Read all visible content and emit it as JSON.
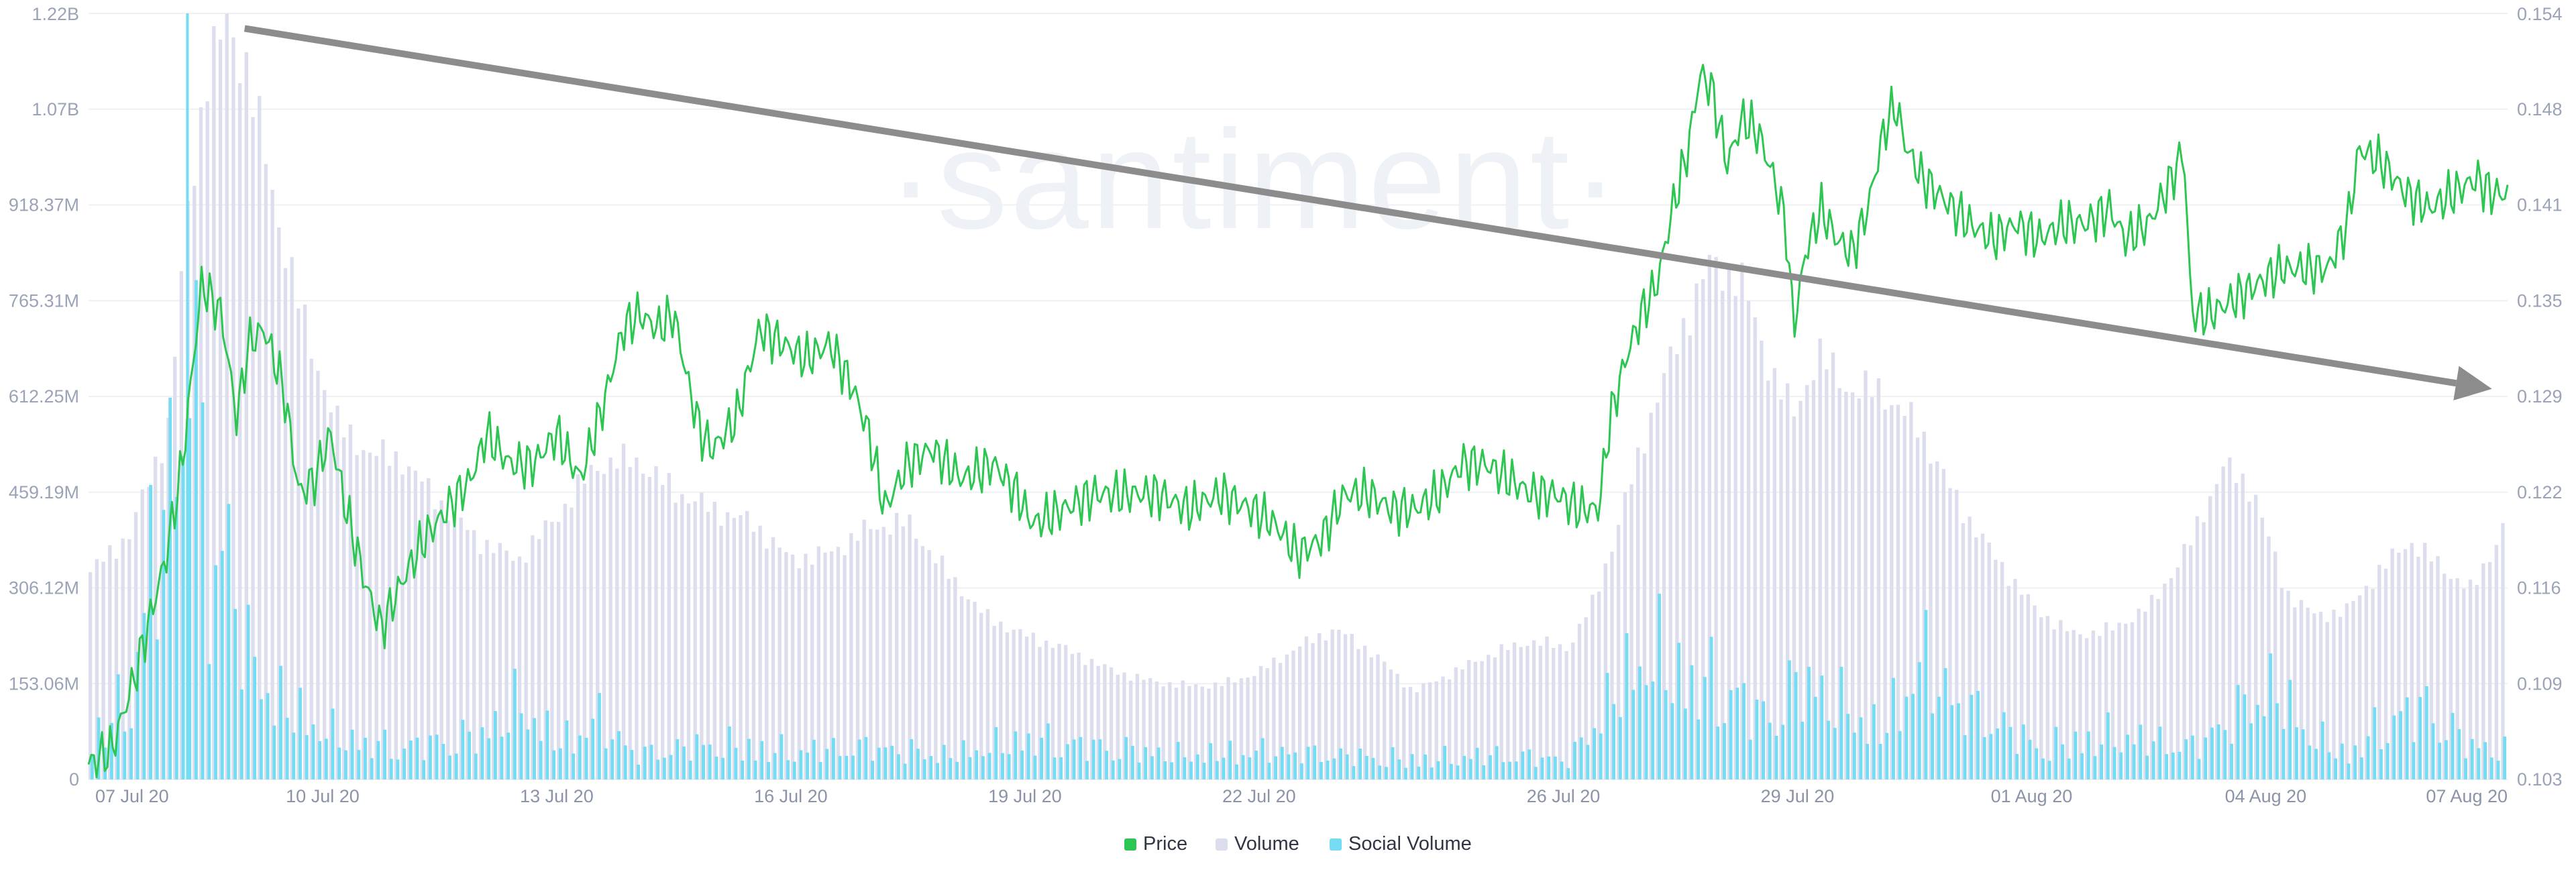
{
  "watermark": "·santiment·",
  "colors": {
    "price": "#2dc653",
    "volume": "#dcdded",
    "social_volume": "#74dcf3",
    "grid": "#eef0f4",
    "axis_text": "#9aa3b8",
    "trend_arrow": "#8c8c8c"
  },
  "chart_data": {
    "type": "line",
    "x_start": "07 Jul 20",
    "x_end": "07 Aug 20",
    "x_tick_labels": [
      "07 Jul 20",
      "10 Jul 20",
      "13 Jul 20",
      "16 Jul 20",
      "19 Jul 20",
      "22 Jul 20",
      "26 Jul 20",
      "29 Jul 20",
      "01 Aug 20",
      "04 Aug 20",
      "07 Aug 20"
    ],
    "left_axis": {
      "tick_labels": [
        "0",
        "153.06M",
        "306.12M",
        "459.19M",
        "612.25M",
        "765.31M",
        "918.37M",
        "1.07B",
        "1.22B"
      ],
      "range": [
        0,
        1220000000
      ]
    },
    "right_axis": {
      "tick_labels": [
        "0.103",
        "0.109",
        "0.116",
        "0.122",
        "0.129",
        "0.135",
        "0.141",
        "0.148",
        "0.154"
      ],
      "range": [
        0.103,
        0.154
      ]
    },
    "grid": true,
    "legend_position": "bottom-center",
    "series": [
      {
        "name": "Price",
        "axis": "right",
        "style": "line",
        "values": [
          {
            "d": 0.0,
            "v": 0.104
          },
          {
            "d": 0.3,
            "v": 0.105
          },
          {
            "d": 0.6,
            "v": 0.11
          },
          {
            "d": 0.8,
            "v": 0.114
          },
          {
            "d": 1.0,
            "v": 0.118
          },
          {
            "d": 1.2,
            "v": 0.124
          },
          {
            "d": 1.45,
            "v": 0.136
          },
          {
            "d": 1.7,
            "v": 0.134
          },
          {
            "d": 1.9,
            "v": 0.127
          },
          {
            "d": 2.05,
            "v": 0.132
          },
          {
            "d": 2.25,
            "v": 0.133
          },
          {
            "d": 2.5,
            "v": 0.129
          },
          {
            "d": 2.7,
            "v": 0.122
          },
          {
            "d": 2.9,
            "v": 0.123
          },
          {
            "d": 3.1,
            "v": 0.126
          },
          {
            "d": 3.3,
            "v": 0.121
          },
          {
            "d": 3.55,
            "v": 0.116
          },
          {
            "d": 3.75,
            "v": 0.113
          },
          {
            "d": 4.0,
            "v": 0.116
          },
          {
            "d": 4.3,
            "v": 0.119
          },
          {
            "d": 4.6,
            "v": 0.121
          },
          {
            "d": 4.9,
            "v": 0.123
          },
          {
            "d": 5.1,
            "v": 0.126
          },
          {
            "d": 5.4,
            "v": 0.124
          },
          {
            "d": 5.7,
            "v": 0.124
          },
          {
            "d": 6.0,
            "v": 0.126
          },
          {
            "d": 6.3,
            "v": 0.123
          },
          {
            "d": 6.6,
            "v": 0.128
          },
          {
            "d": 6.85,
            "v": 0.133
          },
          {
            "d": 7.05,
            "v": 0.134
          },
          {
            "d": 7.3,
            "v": 0.133
          },
          {
            "d": 7.5,
            "v": 0.134
          },
          {
            "d": 7.7,
            "v": 0.129
          },
          {
            "d": 7.85,
            "v": 0.126
          },
          {
            "d": 8.0,
            "v": 0.125
          },
          {
            "d": 8.3,
            "v": 0.127
          },
          {
            "d": 8.6,
            "v": 0.133
          },
          {
            "d": 8.9,
            "v": 0.132
          },
          {
            "d": 9.2,
            "v": 0.131
          },
          {
            "d": 9.5,
            "v": 0.132
          },
          {
            "d": 9.8,
            "v": 0.129
          },
          {
            "d": 10.0,
            "v": 0.126
          },
          {
            "d": 10.2,
            "v": 0.121
          },
          {
            "d": 10.5,
            "v": 0.124
          },
          {
            "d": 10.8,
            "v": 0.125
          },
          {
            "d": 11.2,
            "v": 0.123
          },
          {
            "d": 11.6,
            "v": 0.124
          },
          {
            "d": 11.9,
            "v": 0.122
          },
          {
            "d": 12.1,
            "v": 0.12
          },
          {
            "d": 12.5,
            "v": 0.121
          },
          {
            "d": 12.9,
            "v": 0.122
          },
          {
            "d": 13.3,
            "v": 0.122
          },
          {
            "d": 13.7,
            "v": 0.122
          },
          {
            "d": 14.1,
            "v": 0.121
          },
          {
            "d": 14.5,
            "v": 0.122
          },
          {
            "d": 14.9,
            "v": 0.121
          },
          {
            "d": 15.2,
            "v": 0.12
          },
          {
            "d": 15.5,
            "v": 0.118
          },
          {
            "d": 15.8,
            "v": 0.119
          },
          {
            "d": 16.1,
            "v": 0.122
          },
          {
            "d": 16.4,
            "v": 0.122
          },
          {
            "d": 16.7,
            "v": 0.121
          },
          {
            "d": 17.0,
            "v": 0.121
          },
          {
            "d": 17.3,
            "v": 0.122
          },
          {
            "d": 17.6,
            "v": 0.124
          },
          {
            "d": 17.9,
            "v": 0.124
          },
          {
            "d": 18.2,
            "v": 0.123
          },
          {
            "d": 18.5,
            "v": 0.122
          },
          {
            "d": 18.8,
            "v": 0.122
          },
          {
            "d": 19.1,
            "v": 0.121
          },
          {
            "d": 19.35,
            "v": 0.121
          },
          {
            "d": 19.5,
            "v": 0.127
          },
          {
            "d": 19.7,
            "v": 0.131
          },
          {
            "d": 19.9,
            "v": 0.134
          },
          {
            "d": 20.1,
            "v": 0.136
          },
          {
            "d": 20.3,
            "v": 0.141
          },
          {
            "d": 20.5,
            "v": 0.145
          },
          {
            "d": 20.65,
            "v": 0.15
          },
          {
            "d": 20.8,
            "v": 0.149
          },
          {
            "d": 21.0,
            "v": 0.144
          },
          {
            "d": 21.2,
            "v": 0.147
          },
          {
            "d": 21.4,
            "v": 0.146
          },
          {
            "d": 21.6,
            "v": 0.143
          },
          {
            "d": 21.75,
            "v": 0.14
          },
          {
            "d": 21.85,
            "v": 0.133
          },
          {
            "d": 22.0,
            "v": 0.138
          },
          {
            "d": 22.2,
            "v": 0.141
          },
          {
            "d": 22.4,
            "v": 0.139
          },
          {
            "d": 22.6,
            "v": 0.138
          },
          {
            "d": 22.8,
            "v": 0.141
          },
          {
            "d": 23.0,
            "v": 0.146
          },
          {
            "d": 23.15,
            "v": 0.148
          },
          {
            "d": 23.3,
            "v": 0.145
          },
          {
            "d": 23.5,
            "v": 0.143
          },
          {
            "d": 23.7,
            "v": 0.142
          },
          {
            "d": 23.9,
            "v": 0.141
          },
          {
            "d": 24.1,
            "v": 0.14
          },
          {
            "d": 24.4,
            "v": 0.139
          },
          {
            "d": 24.7,
            "v": 0.14
          },
          {
            "d": 25.0,
            "v": 0.139
          },
          {
            "d": 25.3,
            "v": 0.14
          },
          {
            "d": 25.6,
            "v": 0.14
          },
          {
            "d": 25.9,
            "v": 0.141
          },
          {
            "d": 26.1,
            "v": 0.139
          },
          {
            "d": 26.4,
            "v": 0.14
          },
          {
            "d": 26.7,
            "v": 0.143
          },
          {
            "d": 26.85,
            "v": 0.145
          },
          {
            "d": 26.95,
            "v": 0.134
          },
          {
            "d": 27.2,
            "v": 0.134
          },
          {
            "d": 27.5,
            "v": 0.135
          },
          {
            "d": 27.8,
            "v": 0.136
          },
          {
            "d": 28.1,
            "v": 0.137
          },
          {
            "d": 28.4,
            "v": 0.137
          },
          {
            "d": 28.7,
            "v": 0.137
          },
          {
            "d": 28.95,
            "v": 0.14
          },
          {
            "d": 29.1,
            "v": 0.145
          },
          {
            "d": 29.4,
            "v": 0.144
          },
          {
            "d": 29.7,
            "v": 0.142
          },
          {
            "d": 30.0,
            "v": 0.141
          },
          {
            "d": 30.3,
            "v": 0.142
          },
          {
            "d": 30.6,
            "v": 0.143
          },
          {
            "d": 30.8,
            "v": 0.142
          },
          {
            "d": 31.0,
            "v": 0.142
          }
        ]
      },
      {
        "name": "Volume",
        "axis": "left",
        "style": "bar",
        "values": [
          {
            "d": 0.0,
            "v": 330000000
          },
          {
            "d": 0.5,
            "v": 390000000
          },
          {
            "d": 1.0,
            "v": 560000000
          },
          {
            "d": 1.25,
            "v": 900000000
          },
          {
            "d": 1.5,
            "v": 1130000000
          },
          {
            "d": 1.75,
            "v": 1200000000
          },
          {
            "d": 2.0,
            "v": 1140000000
          },
          {
            "d": 2.4,
            "v": 900000000
          },
          {
            "d": 2.8,
            "v": 700000000
          },
          {
            "d": 3.2,
            "v": 560000000
          },
          {
            "d": 3.6,
            "v": 520000000
          },
          {
            "d": 4.0,
            "v": 510000000
          },
          {
            "d": 4.5,
            "v": 440000000
          },
          {
            "d": 5.0,
            "v": 380000000
          },
          {
            "d": 5.5,
            "v": 350000000
          },
          {
            "d": 6.0,
            "v": 420000000
          },
          {
            "d": 6.5,
            "v": 500000000
          },
          {
            "d": 7.0,
            "v": 510000000
          },
          {
            "d": 7.5,
            "v": 460000000
          },
          {
            "d": 8.0,
            "v": 430000000
          },
          {
            "d": 8.5,
            "v": 410000000
          },
          {
            "d": 9.0,
            "v": 350000000
          },
          {
            "d": 9.5,
            "v": 360000000
          },
          {
            "d": 10.0,
            "v": 400000000
          },
          {
            "d": 10.5,
            "v": 410000000
          },
          {
            "d": 11.0,
            "v": 330000000
          },
          {
            "d": 11.5,
            "v": 260000000
          },
          {
            "d": 12.0,
            "v": 230000000
          },
          {
            "d": 12.5,
            "v": 210000000
          },
          {
            "d": 13.0,
            "v": 180000000
          },
          {
            "d": 13.5,
            "v": 160000000
          },
          {
            "d": 14.0,
            "v": 150000000
          },
          {
            "d": 14.5,
            "v": 150000000
          },
          {
            "d": 15.0,
            "v": 170000000
          },
          {
            "d": 15.5,
            "v": 210000000
          },
          {
            "d": 16.0,
            "v": 240000000
          },
          {
            "d": 16.5,
            "v": 200000000
          },
          {
            "d": 17.0,
            "v": 140000000
          },
          {
            "d": 17.5,
            "v": 170000000
          },
          {
            "d": 18.0,
            "v": 200000000
          },
          {
            "d": 18.5,
            "v": 220000000
          },
          {
            "d": 19.0,
            "v": 210000000
          },
          {
            "d": 19.3,
            "v": 280000000
          },
          {
            "d": 19.6,
            "v": 390000000
          },
          {
            "d": 20.0,
            "v": 560000000
          },
          {
            "d": 20.4,
            "v": 700000000
          },
          {
            "d": 20.8,
            "v": 820000000
          },
          {
            "d": 21.2,
            "v": 800000000
          },
          {
            "d": 21.6,
            "v": 650000000
          },
          {
            "d": 21.9,
            "v": 580000000
          },
          {
            "d": 22.2,
            "v": 680000000
          },
          {
            "d": 22.6,
            "v": 620000000
          },
          {
            "d": 23.0,
            "v": 620000000
          },
          {
            "d": 23.5,
            "v": 560000000
          },
          {
            "d": 24.0,
            "v": 440000000
          },
          {
            "d": 24.5,
            "v": 350000000
          },
          {
            "d": 25.0,
            "v": 270000000
          },
          {
            "d": 25.5,
            "v": 230000000
          },
          {
            "d": 26.0,
            "v": 240000000
          },
          {
            "d": 26.5,
            "v": 280000000
          },
          {
            "d": 27.0,
            "v": 380000000
          },
          {
            "d": 27.4,
            "v": 500000000
          },
          {
            "d": 27.8,
            "v": 460000000
          },
          {
            "d": 28.2,
            "v": 300000000
          },
          {
            "d": 28.6,
            "v": 260000000
          },
          {
            "d": 29.0,
            "v": 270000000
          },
          {
            "d": 29.4,
            "v": 330000000
          },
          {
            "d": 29.8,
            "v": 380000000
          },
          {
            "d": 30.2,
            "v": 340000000
          },
          {
            "d": 30.6,
            "v": 300000000
          },
          {
            "d": 31.0,
            "v": 400000000
          }
        ]
      },
      {
        "name": "Social Volume",
        "axis": "left",
        "style": "bar",
        "values": [
          {
            "d": 0.0,
            "v": 110000000
          },
          {
            "d": 0.5,
            "v": 200000000
          },
          {
            "d": 0.75,
            "v": 540000000
          },
          {
            "d": 1.0,
            "v": 700000000
          },
          {
            "d": 1.25,
            "v": 1220000000
          },
          {
            "d": 1.5,
            "v": 480000000
          },
          {
            "d": 1.75,
            "v": 600000000
          },
          {
            "d": 2.0,
            "v": 300000000
          },
          {
            "d": 2.5,
            "v": 180000000
          },
          {
            "d": 3.0,
            "v": 120000000
          },
          {
            "d": 3.5,
            "v": 90000000
          },
          {
            "d": 4.0,
            "v": 80000000
          },
          {
            "d": 5.0,
            "v": 110000000
          },
          {
            "d": 5.5,
            "v": 190000000
          },
          {
            "d": 6.0,
            "v": 90000000
          },
          {
            "d": 6.5,
            "v": 150000000
          },
          {
            "d": 7.0,
            "v": 60000000
          },
          {
            "d": 8.0,
            "v": 90000000
          },
          {
            "d": 9.0,
            "v": 70000000
          },
          {
            "d": 10.0,
            "v": 80000000
          },
          {
            "d": 11.0,
            "v": 60000000
          },
          {
            "d": 12.0,
            "v": 100000000
          },
          {
            "d": 13.0,
            "v": 80000000
          },
          {
            "d": 14.0,
            "v": 60000000
          },
          {
            "d": 15.0,
            "v": 70000000
          },
          {
            "d": 16.0,
            "v": 60000000
          },
          {
            "d": 17.0,
            "v": 50000000
          },
          {
            "d": 18.0,
            "v": 60000000
          },
          {
            "d": 19.0,
            "v": 50000000
          },
          {
            "d": 19.5,
            "v": 200000000
          },
          {
            "d": 20.0,
            "v": 320000000
          },
          {
            "d": 20.5,
            "v": 250000000
          },
          {
            "d": 21.0,
            "v": 230000000
          },
          {
            "d": 21.5,
            "v": 150000000
          },
          {
            "d": 22.0,
            "v": 250000000
          },
          {
            "d": 22.5,
            "v": 180000000
          },
          {
            "d": 23.0,
            "v": 120000000
          },
          {
            "d": 23.5,
            "v": 300000000
          },
          {
            "d": 24.0,
            "v": 180000000
          },
          {
            "d": 24.5,
            "v": 140000000
          },
          {
            "d": 25.0,
            "v": 80000000
          },
          {
            "d": 26.0,
            "v": 110000000
          },
          {
            "d": 27.0,
            "v": 80000000
          },
          {
            "d": 28.0,
            "v": 230000000
          },
          {
            "d": 28.5,
            "v": 110000000
          },
          {
            "d": 29.0,
            "v": 60000000
          },
          {
            "d": 29.5,
            "v": 150000000
          },
          {
            "d": 30.0,
            "v": 180000000
          },
          {
            "d": 30.5,
            "v": 90000000
          },
          {
            "d": 31.0,
            "v": 70000000
          }
        ]
      }
    ],
    "annotations": [
      {
        "type": "trend-arrow",
        "from": {
          "d": 2.0,
          "v": 0.153
        },
        "to": {
          "d": 30.8,
          "v": 0.129
        }
      }
    ]
  },
  "legend": {
    "items": [
      {
        "label": "Price",
        "color": "#2dc653"
      },
      {
        "label": "Volume",
        "color": "#dcdded"
      },
      {
        "label": "Social Volume",
        "color": "#74dcf3"
      }
    ]
  }
}
